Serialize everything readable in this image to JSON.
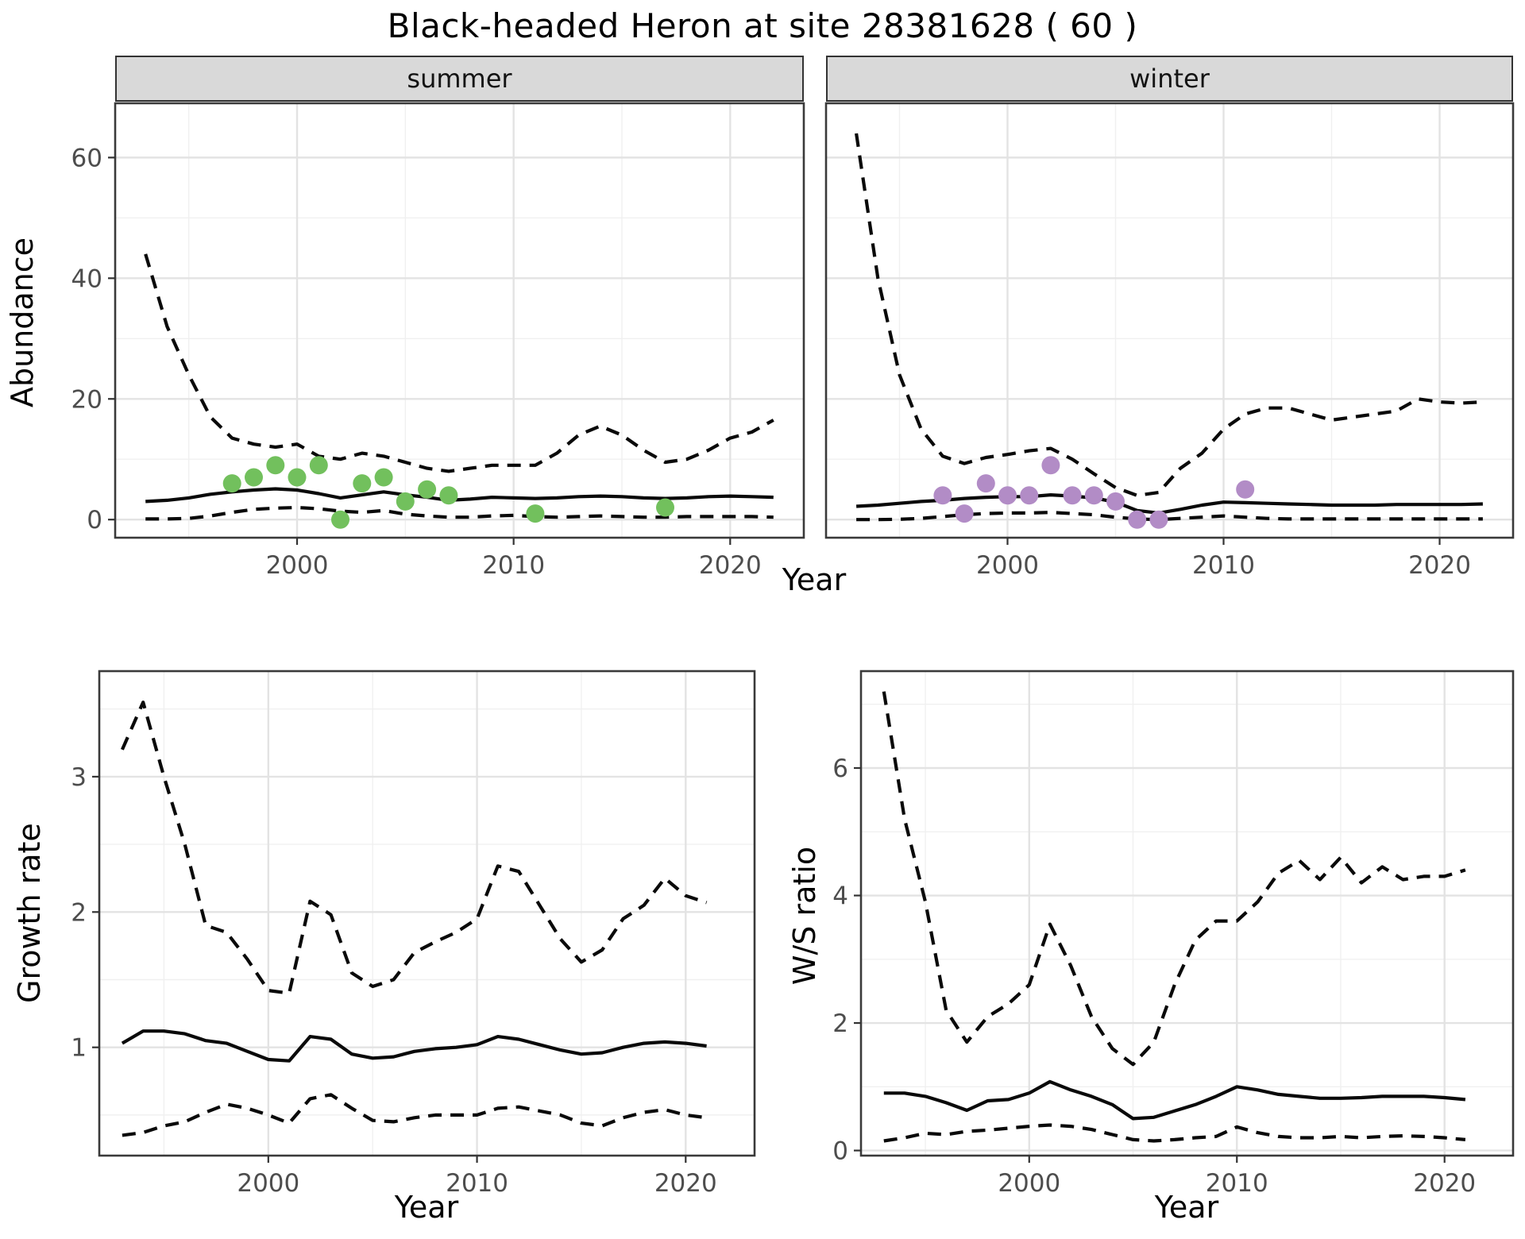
{
  "title": "Black-headed Heron at site 28381628 ( 60 )",
  "facets": {
    "summer": "summer",
    "winter": "winter"
  },
  "axis_titles": {
    "abundance": "Abundance",
    "year": "Year",
    "growth_rate": "Growth rate",
    "ws_ratio": "W/S ratio"
  },
  "colors": {
    "summer_point": "#72c05d",
    "winter_point": "#b28cc6",
    "line": "#0a0a0a",
    "grid_major": "#e3e3e3",
    "grid_minor": "#f0f0f0",
    "panel_border": "#3a3a3a",
    "strip_bg": "#d9d9d9",
    "axis_text": "#4d4d4d",
    "tick_mark": "#333333"
  },
  "chart_data": [
    {
      "id": "summer",
      "type": "line",
      "facet_label": "summer",
      "xlabel": "Year",
      "ylabel": "Abundance",
      "xlim": [
        1991.6,
        2023.4
      ],
      "ylim": [
        -3,
        69
      ],
      "xticks": [
        2000,
        2010,
        2020
      ],
      "xticks_minor": [
        1995,
        2005,
        2015
      ],
      "yticks": [
        0,
        20,
        40,
        60
      ],
      "yticks_minor": [
        10,
        30,
        50
      ],
      "show_y_labels": true,
      "x": [
        1993,
        1994,
        1995,
        1996,
        1997,
        1998,
        1999,
        2000,
        2001,
        2002,
        2003,
        2004,
        2005,
        2006,
        2007,
        2008,
        2009,
        2010,
        2011,
        2012,
        2013,
        2014,
        2015,
        2016,
        2017,
        2018,
        2019,
        2020,
        2021,
        2022
      ],
      "series": [
        {
          "name": "upper 95% CI",
          "style": "dashed",
          "values": [
            44,
            32,
            24,
            17,
            13.5,
            12.5,
            12,
            12.5,
            10.5,
            10,
            11,
            10.5,
            9.5,
            8.5,
            8,
            8.5,
            9,
            9,
            9,
            11,
            14,
            15.5,
            14,
            11.5,
            9.5,
            10,
            11.5,
            13.5,
            14.5,
            16.5
          ]
        },
        {
          "name": "median",
          "style": "solid",
          "values": [
            3,
            3.2,
            3.6,
            4.2,
            4.6,
            4.9,
            5.1,
            4.9,
            4.3,
            3.6,
            4.1,
            4.6,
            4.1,
            3.7,
            3.2,
            3.4,
            3.7,
            3.6,
            3.5,
            3.6,
            3.8,
            3.9,
            3.8,
            3.6,
            3.5,
            3.6,
            3.8,
            3.9,
            3.8,
            3.7
          ]
        },
        {
          "name": "lower 95% CI",
          "style": "dashed",
          "values": [
            0.1,
            0.1,
            0.2,
            0.6,
            1.2,
            1.7,
            1.9,
            2.0,
            1.8,
            1.4,
            1.2,
            1.5,
            0.9,
            0.6,
            0.4,
            0.4,
            0.6,
            0.7,
            0.5,
            0.4,
            0.5,
            0.6,
            0.5,
            0.4,
            0.4,
            0.5,
            0.5,
            0.5,
            0.5,
            0.4
          ]
        }
      ],
      "points": {
        "name": "observed summer counts",
        "color": "#72c05d",
        "x": [
          1997,
          1998,
          1999,
          2000,
          2001,
          2002,
          2003,
          2004,
          2005,
          2006,
          2007,
          2011,
          2017
        ],
        "y": [
          6,
          7,
          9,
          7,
          9,
          0,
          6,
          7,
          3,
          5,
          4,
          1,
          2
        ]
      }
    },
    {
      "id": "winter",
      "type": "line",
      "facet_label": "winter",
      "xlabel": "Year",
      "ylabel": "Abundance",
      "xlim": [
        1991.6,
        2023.4
      ],
      "ylim": [
        -3,
        69
      ],
      "xticks": [
        2000,
        2010,
        2020
      ],
      "xticks_minor": [
        1995,
        2005,
        2015
      ],
      "yticks": [
        0,
        20,
        40,
        60
      ],
      "yticks_minor": [
        10,
        30,
        50
      ],
      "show_y_labels": false,
      "x": [
        1993,
        1994,
        1995,
        1996,
        1997,
        1998,
        1999,
        2000,
        2001,
        2002,
        2003,
        2004,
        2005,
        2006,
        2007,
        2008,
        2009,
        2010,
        2011,
        2012,
        2013,
        2014,
        2015,
        2016,
        2017,
        2018,
        2019,
        2020,
        2021,
        2022
      ],
      "series": [
        {
          "name": "upper 95% CI",
          "style": "dashed",
          "values": [
            64,
            40,
            24,
            15,
            10.5,
            9.3,
            10.3,
            10.8,
            11.4,
            11.8,
            10,
            7.6,
            5.3,
            4,
            4.5,
            8.5,
            11,
            15,
            17.5,
            18.5,
            18.5,
            17.5,
            16.5,
            17,
            17.5,
            18,
            20,
            19.5,
            19.3,
            19.5
          ]
        },
        {
          "name": "median",
          "style": "solid",
          "values": [
            2.2,
            2.4,
            2.7,
            3.0,
            3.2,
            3.5,
            3.7,
            3.8,
            3.8,
            4.1,
            3.9,
            3.6,
            2.9,
            1.5,
            1.1,
            1.7,
            2.4,
            2.9,
            2.8,
            2.7,
            2.6,
            2.5,
            2.4,
            2.4,
            2.4,
            2.5,
            2.5,
            2.5,
            2.5,
            2.6
          ]
        },
        {
          "name": "lower 95% CI",
          "style": "dashed",
          "values": [
            0,
            0,
            0.05,
            0.2,
            0.5,
            0.8,
            1.0,
            1.1,
            1.1,
            1.2,
            1.0,
            0.8,
            0.4,
            0.1,
            0,
            0.2,
            0.4,
            0.6,
            0.4,
            0.2,
            0.1,
            0.1,
            0.1,
            0.1,
            0.1,
            0.1,
            0.1,
            0.1,
            0.1,
            0.1
          ]
        }
      ],
      "points": {
        "name": "observed winter counts",
        "color": "#b28cc6",
        "x": [
          1997,
          1998,
          1999,
          2000,
          2001,
          2002,
          2003,
          2004,
          2005,
          2006,
          2007,
          2011
        ],
        "y": [
          4,
          1,
          6,
          4,
          4,
          9,
          4,
          4,
          3,
          0,
          0,
          5
        ]
      }
    },
    {
      "id": "growth",
      "type": "line",
      "facet_label": "",
      "xlabel": "Year",
      "ylabel": "Growth rate",
      "xlim": [
        1991.9,
        2023.3
      ],
      "ylim": [
        0.2,
        3.78
      ],
      "xticks": [
        2000,
        2010,
        2020
      ],
      "xticks_minor": [
        1995,
        2005,
        2015
      ],
      "yticks": [
        1,
        2,
        3
      ],
      "yticks_minor": [
        0.5,
        1.5,
        2.5,
        3.5
      ],
      "show_y_labels": true,
      "x": [
        1993,
        1994,
        1995,
        1996,
        1997,
        1998,
        1999,
        2000,
        2001,
        2002,
        2003,
        2004,
        2005,
        2006,
        2007,
        2008,
        2009,
        2010,
        2011,
        2012,
        2013,
        2014,
        2015,
        2016,
        2017,
        2018,
        2019,
        2020,
        2021
      ],
      "series": [
        {
          "name": "upper 95% CI",
          "style": "dashed",
          "values": [
            3.2,
            3.55,
            3.0,
            2.5,
            1.9,
            1.85,
            1.65,
            1.42,
            1.4,
            2.08,
            1.98,
            1.55,
            1.45,
            1.5,
            1.7,
            1.78,
            1.85,
            1.95,
            2.34,
            2.3,
            2.05,
            1.8,
            1.63,
            1.72,
            1.95,
            2.05,
            2.25,
            2.12,
            2.07
          ]
        },
        {
          "name": "median",
          "style": "solid",
          "values": [
            1.03,
            1.12,
            1.12,
            1.1,
            1.05,
            1.03,
            0.97,
            0.91,
            0.9,
            1.08,
            1.06,
            0.95,
            0.92,
            0.93,
            0.97,
            0.99,
            1.0,
            1.02,
            1.08,
            1.06,
            1.02,
            0.98,
            0.95,
            0.96,
            1.0,
            1.03,
            1.04,
            1.03,
            1.01
          ]
        },
        {
          "name": "lower 95% CI",
          "style": "dashed",
          "values": [
            0.35,
            0.37,
            0.42,
            0.45,
            0.52,
            0.58,
            0.55,
            0.5,
            0.44,
            0.62,
            0.65,
            0.55,
            0.46,
            0.45,
            0.48,
            0.5,
            0.5,
            0.5,
            0.55,
            0.56,
            0.53,
            0.5,
            0.44,
            0.42,
            0.48,
            0.52,
            0.54,
            0.5,
            0.48
          ]
        }
      ],
      "points": null
    },
    {
      "id": "ws",
      "type": "line",
      "facet_label": "",
      "xlabel": "Year",
      "ylabel": "W/S ratio",
      "xlim": [
        1991.9,
        2023.3
      ],
      "ylim": [
        -0.08,
        7.52
      ],
      "xticks": [
        2000,
        2010,
        2020
      ],
      "xticks_minor": [
        1995,
        2005,
        2015
      ],
      "yticks": [
        0,
        2,
        4,
        6
      ],
      "yticks_minor": [
        1,
        3,
        5,
        7
      ],
      "show_y_labels": true,
      "x": [
        1993,
        1994,
        1995,
        1996,
        1997,
        1998,
        1999,
        2000,
        2001,
        2002,
        2003,
        2004,
        2005,
        2006,
        2007,
        2008,
        2009,
        2010,
        2011,
        2012,
        2013,
        2014,
        2015,
        2016,
        2017,
        2018,
        2019,
        2020,
        2021
      ],
      "series": [
        {
          "name": "upper 95% CI",
          "style": "dashed",
          "values": [
            7.2,
            5.2,
            3.9,
            2.2,
            1.7,
            2.1,
            2.3,
            2.6,
            3.55,
            2.9,
            2.1,
            1.6,
            1.35,
            1.7,
            2.6,
            3.3,
            3.6,
            3.6,
            3.9,
            4.35,
            4.55,
            4.25,
            4.6,
            4.2,
            4.45,
            4.25,
            4.3,
            4.3,
            4.4
          ]
        },
        {
          "name": "median",
          "style": "solid",
          "values": [
            0.9,
            0.9,
            0.85,
            0.75,
            0.63,
            0.78,
            0.8,
            0.9,
            1.08,
            0.95,
            0.85,
            0.72,
            0.5,
            0.52,
            0.62,
            0.72,
            0.85,
            1.0,
            0.95,
            0.88,
            0.85,
            0.82,
            0.82,
            0.83,
            0.85,
            0.85,
            0.85,
            0.83,
            0.8
          ]
        },
        {
          "name": "lower 95% CI",
          "style": "dashed",
          "values": [
            0.15,
            0.2,
            0.27,
            0.25,
            0.3,
            0.32,
            0.35,
            0.38,
            0.4,
            0.38,
            0.33,
            0.25,
            0.17,
            0.15,
            0.17,
            0.2,
            0.22,
            0.37,
            0.28,
            0.22,
            0.2,
            0.2,
            0.22,
            0.2,
            0.22,
            0.23,
            0.22,
            0.2,
            0.17
          ]
        }
      ],
      "points": null
    }
  ]
}
